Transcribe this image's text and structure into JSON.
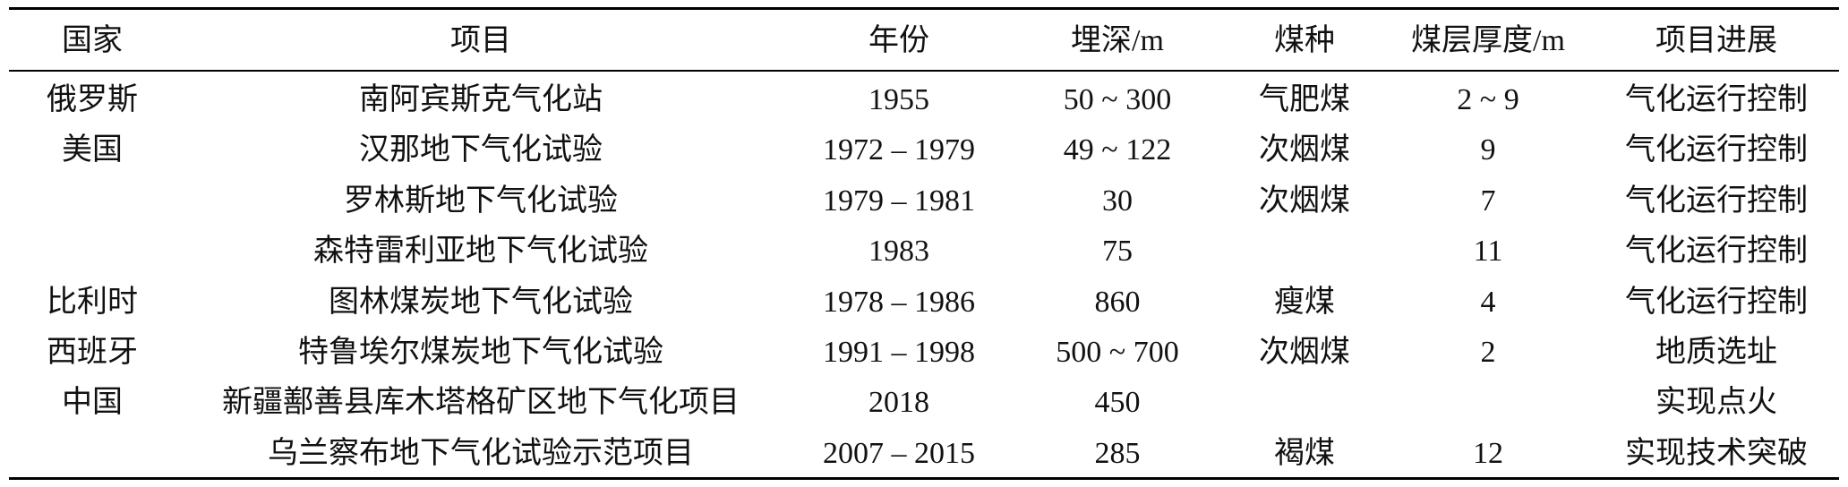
{
  "table": {
    "header": [
      "国家",
      "项目",
      "年份",
      "埋深/m",
      "煤种",
      "煤层厚度/m",
      "项目进展"
    ],
    "rows": [
      [
        "俄罗斯",
        "南阿宾斯克气化站",
        "1955",
        "50 ~ 300",
        "气肥煤",
        "2 ~ 9",
        "气化运行控制"
      ],
      [
        "美国",
        "汉那地下气化试验",
        "1972 – 1979",
        "49 ~ 122",
        "次烟煤",
        "9",
        "气化运行控制"
      ],
      [
        null,
        "罗林斯地下气化试验",
        "1979 – 1981",
        "30",
        "次烟煤",
        "7",
        "气化运行控制"
      ],
      [
        null,
        "森特雷利亚地下气化试验",
        "1983",
        "75",
        null,
        "11",
        "气化运行控制"
      ],
      [
        "比利时",
        "图林煤炭地下气化试验",
        "1978 – 1986",
        "860",
        "瘦煤",
        "4",
        "气化运行控制"
      ],
      [
        "西班牙",
        "特鲁埃尔煤炭地下气化试验",
        "1991 – 1998",
        "500 ~ 700",
        "次烟煤",
        "2",
        "地质选址"
      ],
      [
        "中国",
        "新疆鄯善县库木塔格矿区地下气化项目",
        "2018",
        "450",
        null,
        null,
        "实现点火"
      ],
      [
        null,
        "乌兰察布地下气化试验示范项目",
        "2007 – 2015",
        "285",
        "褐煤",
        "12",
        "实现技术突破"
      ]
    ]
  }
}
